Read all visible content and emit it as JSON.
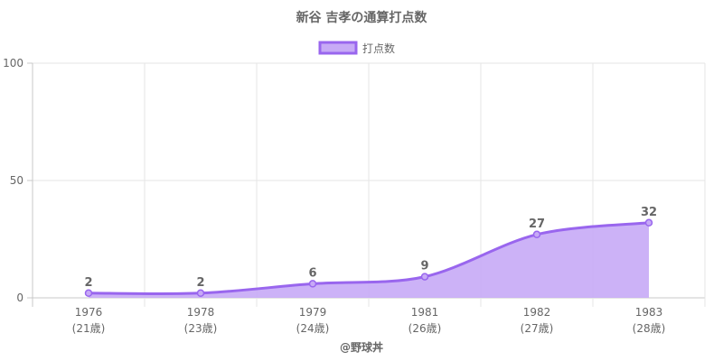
{
  "chart_data": {
    "type": "area",
    "title": "新谷 吉孝の通算打点数",
    "categories": [
      "1976",
      "1978",
      "1979",
      "1981",
      "1982",
      "1983"
    ],
    "sub_labels": [
      "(21歳)",
      "(23歳)",
      "(24歳)",
      "(26歳)",
      "(27歳)",
      "(28歳)"
    ],
    "series": [
      {
        "name": "打点数",
        "values": [
          2,
          2,
          6,
          9,
          27,
          32
        ]
      }
    ],
    "data_labels": [
      "2",
      "2",
      "6",
      "9",
      "27",
      "32"
    ],
    "y_ticks": [
      "0",
      "50",
      "100"
    ],
    "ylim": [
      0,
      100
    ],
    "grid": true,
    "legend": "top-center",
    "colors": {
      "line": "#9966ee",
      "fill": "#c7aaf6",
      "grid": "#e5e5e5",
      "axis": "#c8c8c8",
      "text": "#666666"
    }
  },
  "footer": "@野球丼"
}
